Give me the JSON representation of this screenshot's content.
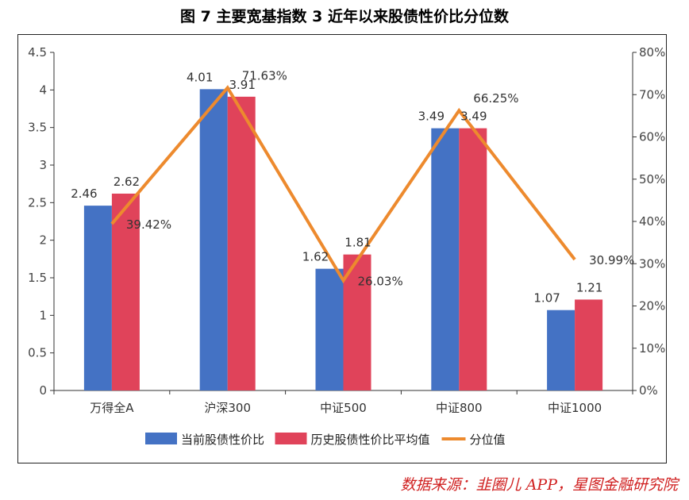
{
  "header": {
    "title": "图 7 主要宽基指数 3 近年以来股债性价比分位数"
  },
  "footer": {
    "source": "数据来源：韭圈儿 APP，星图金融研究院"
  },
  "chart_data": {
    "type": "bar",
    "title": "图 7 主要宽基指数 3 近年以来股债性价比分位数",
    "categories": [
      "万得全A",
      "沪深300",
      "中证500",
      "中证800",
      "中证1000"
    ],
    "series": [
      {
        "name": "当前股债性价比",
        "type": "bar",
        "axis": "left",
        "color": "#4472c4",
        "values": [
          2.46,
          4.01,
          1.62,
          3.49,
          1.07
        ],
        "labels": [
          "2.46",
          "4.01",
          "1.62",
          "3.49",
          "1.07"
        ]
      },
      {
        "name": "历史股债性价比平均值",
        "type": "bar",
        "axis": "left",
        "color": "#e0435a",
        "values": [
          2.62,
          3.91,
          1.81,
          3.49,
          1.21
        ],
        "labels": [
          "2.62",
          "3.91",
          "1.81",
          "3.49",
          "1.21"
        ]
      },
      {
        "name": "分位值",
        "type": "line",
        "axis": "right",
        "color": "#ed8a2e",
        "values": [
          39.42,
          71.63,
          26.03,
          66.25,
          30.99
        ],
        "labels": [
          "39.42%",
          "71.63%",
          "26.03%",
          "66.25%",
          "30.99%"
        ]
      }
    ],
    "y_left": {
      "ylim": [
        0,
        4.5
      ],
      "ticks": [
        "0",
        "0.5",
        "1",
        "1.5",
        "2",
        "2.5",
        "3",
        "3.5",
        "4",
        "4.5"
      ]
    },
    "y_right": {
      "ylim": [
        0,
        80
      ],
      "ticks": [
        "0%",
        "10%",
        "20%",
        "30%",
        "40%",
        "50%",
        "60%",
        "70%",
        "80%"
      ]
    },
    "legend": {
      "position": "bottom"
    },
    "grid": false
  }
}
